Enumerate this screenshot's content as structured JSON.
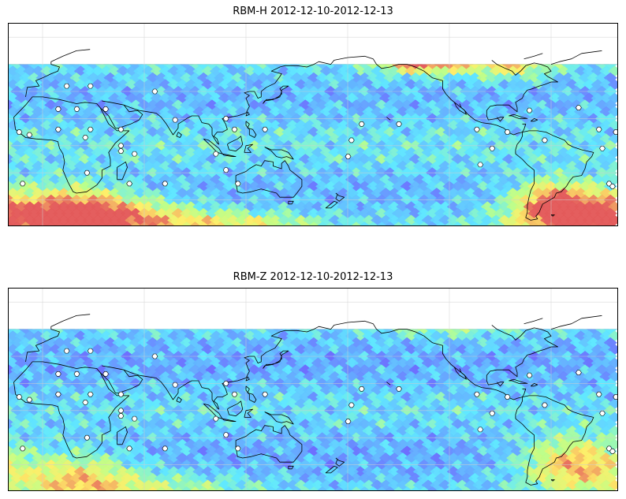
{
  "panels": [
    {
      "title": "RBM-H 2012-12-10-2012-12-13",
      "field": {
        "base_level": 0.25,
        "hotspots": [
          {
            "lon": 22,
            "lat": -52,
            "sx": 22,
            "sy": 14,
            "amp": 0.85
          },
          {
            "lon": 60,
            "lat": -55,
            "sx": 28,
            "sy": 10,
            "amp": 0.45
          },
          {
            "lon": 120,
            "lat": -58,
            "sx": 30,
            "sy": 6,
            "amp": 0.35
          },
          {
            "lon": 320,
            "lat": -52,
            "sx": 28,
            "sy": 14,
            "amp": 0.95
          },
          {
            "lon": 300,
            "lat": -40,
            "sx": 12,
            "sy": 10,
            "amp": 0.4
          },
          {
            "lon": 225,
            "lat": 62,
            "sx": 18,
            "sy": 6,
            "amp": 0.75
          },
          {
            "lon": 275,
            "lat": 60,
            "sx": 18,
            "sy": 7,
            "amp": 0.45
          }
        ]
      }
    },
    {
      "title": "RBM-Z 2012-12-10-2012-12-13",
      "field": {
        "base_level": 0.22,
        "hotspots": [
          {
            "lon": 20,
            "lat": -50,
            "sx": 25,
            "sy": 14,
            "amp": 0.5
          },
          {
            "lon": 315,
            "lat": -40,
            "sx": 22,
            "sy": 14,
            "amp": 0.65
          },
          {
            "lon": 70,
            "lat": -58,
            "sx": 40,
            "sy": 8,
            "amp": 0.25
          },
          {
            "lon": 240,
            "lat": 62,
            "sx": 30,
            "sy": 6,
            "amp": 0.2
          }
        ]
      }
    }
  ],
  "colors": {
    "low": "#6b6bff",
    "mid_low": "#5ee8ff",
    "mid": "#b8ff8a",
    "mid_high": "#ffee66",
    "high": "#e35a5a",
    "coastline": "#000000",
    "gridline": "#cfcfcf"
  },
  "map": {
    "projection": "plate-carree",
    "central_longitude": 160,
    "lat_range": [
      -60,
      90
    ],
    "data_lat_range": [
      -60,
      60
    ],
    "gridlines": true
  }
}
